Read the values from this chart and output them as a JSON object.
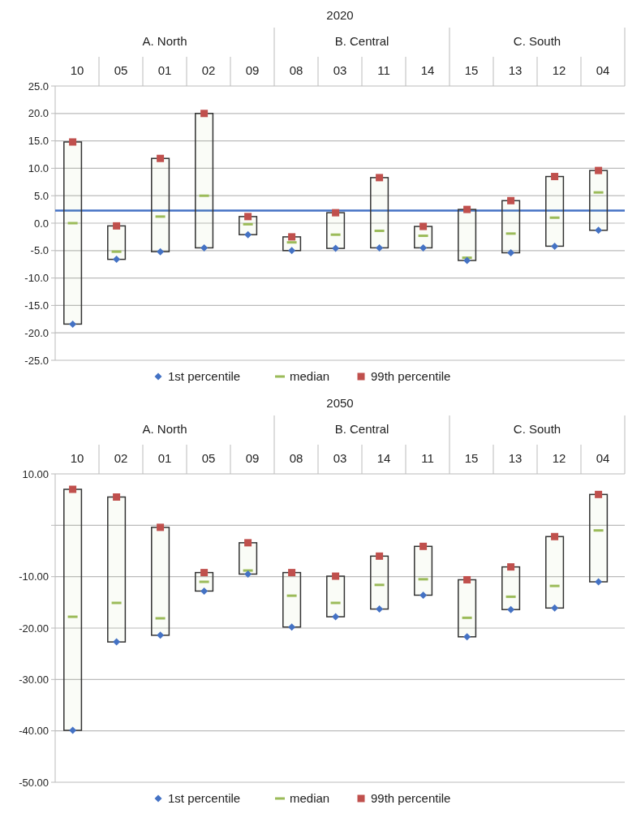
{
  "chart_data": [
    {
      "type": "box",
      "title": "2020",
      "categories": [
        "10",
        "05",
        "01",
        "02",
        "09",
        "08",
        "03",
        "11",
        "14",
        "15",
        "13",
        "12",
        "04"
      ],
      "annotations": [
        "A. North",
        "B. Central",
        "C. South"
      ],
      "ylim": [
        -25,
        25
      ],
      "yticks": [
        {
          "value": -25,
          "label": "-25.0"
        },
        {
          "value": -20,
          "label": "-20.0"
        },
        {
          "value": -15,
          "label": "-15.0"
        },
        {
          "value": -10,
          "label": "-10.0"
        },
        {
          "value": -5,
          "label": "-5.0"
        },
        {
          "value": 0,
          "label": "0.0"
        },
        {
          "value": 5,
          "label": "5.0"
        },
        {
          "value": 10,
          "label": "10.0"
        },
        {
          "value": 15,
          "label": "15.0"
        },
        {
          "value": 20,
          "label": "20.0"
        },
        {
          "value": 25,
          "label": "25.0"
        }
      ],
      "grid": "y",
      "legend": "bottom",
      "ref_lines": [
        {
          "axis": "y",
          "value": 2.3,
          "color": "#4472c4"
        }
      ],
      "series": [
        {
          "type": "scatter",
          "name": "1st percentile",
          "marker": "diamond",
          "color": "#4472c4",
          "x": [
            "10",
            "05",
            "01",
            "02",
            "09",
            "08",
            "03",
            "11",
            "14",
            "15",
            "13",
            "12",
            "04"
          ],
          "values": [
            -18.4,
            -6.6,
            -5.2,
            -4.5,
            -2.1,
            -5.0,
            -4.6,
            -4.5,
            -4.5,
            -6.8,
            -5.4,
            -4.2,
            -1.3
          ]
        },
        {
          "name": "median",
          "color": "#9bbb59",
          "boxes": [
            {
              "low": -18.4,
              "q1": -18.4,
              "median": 0.0,
              "q3": 14.8,
              "high": 14.8
            },
            {
              "low": -6.6,
              "q1": -6.6,
              "median": -5.2,
              "q3": -0.5,
              "high": -0.5
            },
            {
              "low": -5.2,
              "q1": -5.2,
              "median": 1.2,
              "q3": 11.8,
              "high": 11.8
            },
            {
              "low": -4.5,
              "q1": -4.5,
              "median": 5.0,
              "q3": 20.0,
              "high": 20.0
            },
            {
              "low": -2.1,
              "q1": -2.1,
              "median": -0.2,
              "q3": 1.2,
              "high": 1.2
            },
            {
              "low": -5.0,
              "q1": -5.0,
              "median": -3.5,
              "q3": -2.5,
              "high": -2.5
            },
            {
              "low": -4.6,
              "q1": -4.6,
              "median": -2.1,
              "q3": 1.9,
              "high": 1.9
            },
            {
              "low": -4.5,
              "q1": -4.5,
              "median": -1.4,
              "q3": 8.3,
              "high": 8.3
            },
            {
              "low": -4.5,
              "q1": -4.5,
              "median": -2.3,
              "q3": -0.6,
              "high": -0.6
            },
            {
              "low": -6.8,
              "q1": -6.8,
              "median": -6.3,
              "q3": 2.5,
              "high": 2.5
            },
            {
              "low": -5.4,
              "q1": -5.4,
              "median": -1.9,
              "q3": 4.1,
              "high": 4.1
            },
            {
              "low": -4.2,
              "q1": -4.2,
              "median": 1.0,
              "q3": 8.5,
              "high": 8.5
            },
            {
              "low": -1.3,
              "q1": -1.3,
              "median": 5.6,
              "q3": 9.6,
              "high": 9.6
            }
          ]
        },
        {
          "type": "scatter",
          "name": "99th percentile",
          "marker": "square",
          "color": "#c0504d",
          "x": [
            "10",
            "05",
            "01",
            "02",
            "09",
            "08",
            "03",
            "11",
            "14",
            "15",
            "13",
            "12",
            "04"
          ],
          "values": [
            14.8,
            -0.5,
            11.8,
            20.0,
            1.2,
            -2.5,
            1.9,
            8.3,
            -0.6,
            2.5,
            4.1,
            8.5,
            9.6
          ]
        }
      ]
    },
    {
      "type": "box",
      "title": "2050",
      "categories": [
        "10",
        "02",
        "01",
        "05",
        "09",
        "08",
        "03",
        "14",
        "11",
        "15",
        "13",
        "12",
        "04"
      ],
      "annotations": [
        "A. North",
        "B. Central",
        "C. South"
      ],
      "ylim": [
        -50,
        10
      ],
      "yticks": [
        {
          "value": -50,
          "label": "-50.00"
        },
        {
          "value": -40,
          "label": "-40.00"
        },
        {
          "value": -30,
          "label": "-30.00"
        },
        {
          "value": -20,
          "label": "-20.00"
        },
        {
          "value": -10,
          "label": "-10.00"
        },
        {
          "value": 0,
          "label": null
        },
        {
          "value": 10,
          "label": "10.00"
        }
      ],
      "grid": "y",
      "legend": "bottom",
      "series": [
        {
          "type": "scatter",
          "name": "1st percentile",
          "marker": "diamond",
          "color": "#4472c4",
          "x": [
            "10",
            "02",
            "01",
            "05",
            "09",
            "08",
            "03",
            "14",
            "11",
            "15",
            "13",
            "12",
            "04"
          ],
          "values": [
            -39.9,
            -22.7,
            -21.4,
            -12.8,
            -9.5,
            -19.8,
            -17.8,
            -16.3,
            -13.6,
            -21.7,
            -16.4,
            -16.1,
            -11.0
          ]
        },
        {
          "name": "median",
          "color": "#9bbb59",
          "boxes": [
            {
              "low": -39.9,
              "q1": -39.9,
              "median": -17.8,
              "q3": 7.0,
              "high": 7.0
            },
            {
              "low": -22.7,
              "q1": -22.7,
              "median": -15.1,
              "q3": 5.5,
              "high": 5.5
            },
            {
              "low": -21.4,
              "q1": -21.4,
              "median": -18.1,
              "q3": -0.4,
              "high": -0.4
            },
            {
              "low": -12.8,
              "q1": -12.8,
              "median": -11.0,
              "q3": -9.2,
              "high": -9.2
            },
            {
              "low": -9.5,
              "q1": -9.5,
              "median": -8.8,
              "q3": -3.4,
              "high": -3.4
            },
            {
              "low": -19.8,
              "q1": -19.8,
              "median": -13.7,
              "q3": -9.2,
              "high": -9.2
            },
            {
              "low": -17.8,
              "q1": -17.8,
              "median": -15.1,
              "q3": -9.9,
              "high": -9.9
            },
            {
              "low": -16.3,
              "q1": -16.3,
              "median": -11.6,
              "q3": -6.0,
              "high": -6.0
            },
            {
              "low": -13.6,
              "q1": -13.6,
              "median": -10.5,
              "q3": -4.1,
              "high": -4.1
            },
            {
              "low": -21.7,
              "q1": -21.7,
              "median": -18.0,
              "q3": -10.6,
              "high": -10.6
            },
            {
              "low": -16.4,
              "q1": -16.4,
              "median": -13.9,
              "q3": -8.1,
              "high": -8.1
            },
            {
              "low": -16.1,
              "q1": -16.1,
              "median": -11.8,
              "q3": -2.2,
              "high": -2.2
            },
            {
              "low": -11.0,
              "q1": -11.0,
              "median": -1.0,
              "q3": 6.0,
              "high": 6.0
            }
          ]
        },
        {
          "type": "scatter",
          "name": "99th percentile",
          "marker": "square",
          "color": "#c0504d",
          "x": [
            "10",
            "02",
            "01",
            "05",
            "09",
            "08",
            "03",
            "14",
            "11",
            "15",
            "13",
            "12",
            "04"
          ],
          "values": [
            7.0,
            5.5,
            -0.4,
            -9.2,
            -3.4,
            -9.2,
            -9.9,
            -6.0,
            -4.1,
            -10.6,
            -8.1,
            -2.2,
            6.0
          ]
        }
      ]
    }
  ]
}
